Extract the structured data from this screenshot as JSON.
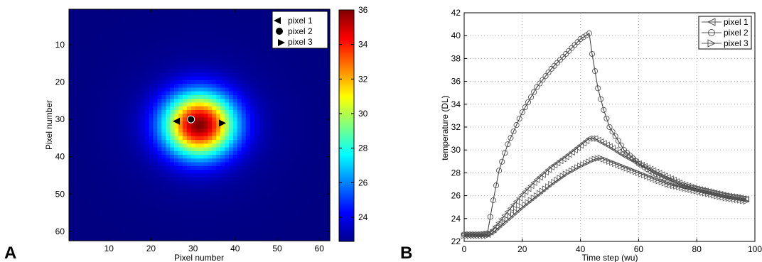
{
  "panels": {
    "A": {
      "letter": "A",
      "xlabel": "Pixel number",
      "ylabel": "Pixel number",
      "xticks": [
        10,
        20,
        30,
        40,
        50,
        60
      ],
      "yticks": [
        10,
        20,
        30,
        40,
        50,
        60
      ],
      "colorbar_ticks": [
        24,
        26,
        28,
        30,
        32,
        34,
        36
      ],
      "legend": [
        {
          "label": "pixel 1",
          "marker": "triangle-left"
        },
        {
          "label": "pixel 2",
          "marker": "circle"
        },
        {
          "label": "pixel 3",
          "marker": "triangle-right"
        }
      ]
    },
    "B": {
      "letter": "B",
      "xlabel": "Time step (wu)",
      "ylabel": "temperature (DL)",
      "xticks": [
        0,
        20,
        40,
        60,
        80,
        100
      ],
      "yticks": [
        22,
        24,
        26,
        28,
        30,
        32,
        34,
        36,
        38,
        40,
        42
      ],
      "legend": [
        {
          "label": "pixel 1",
          "marker": "triangle-left"
        },
        {
          "label": "pixel 2",
          "marker": "circle"
        },
        {
          "label": "pixel 3",
          "marker": "triangle-right"
        }
      ]
    }
  },
  "chart_data": [
    {
      "type": "heatmap",
      "xlabel": "Pixel number",
      "ylabel": "Pixel number",
      "xlim": [
        0.5,
        62.5
      ],
      "ylim": [
        62.5,
        0.5
      ],
      "grid": false,
      "colormap": "jet",
      "colorbar": {
        "min": 22.6,
        "max": 36.0,
        "ticks": [
          24,
          26,
          28,
          30,
          32,
          34,
          36
        ]
      },
      "field": {
        "center": [
          31.5,
          31.5
        ],
        "background": 22.6,
        "peak": 36.0,
        "sigma": 5.8,
        "floor_level": 23.1,
        "floor_sigma": 14
      },
      "markers": [
        {
          "name": "pixel 1",
          "marker": "triangle-left",
          "x": 26,
          "y": 30.5
        },
        {
          "name": "pixel 2",
          "marker": "circle",
          "x": 29.5,
          "y": 30
        },
        {
          "name": "pixel 3",
          "marker": "triangle-right",
          "x": 37,
          "y": 31
        }
      ],
      "legend": "top-right"
    },
    {
      "type": "line",
      "xlabel": "Time step (wu)",
      "ylabel": "temperature (DL)",
      "xlim": [
        0,
        100
      ],
      "ylim": [
        22,
        42
      ],
      "grid": true,
      "legend": "top-right",
      "series": [
        {
          "name": "pixel 1",
          "marker": "triangle-left",
          "x": [
            0,
            5,
            8,
            10,
            15,
            20,
            25,
            30,
            35,
            40,
            43,
            45,
            50,
            55,
            60,
            65,
            70,
            75,
            80,
            85,
            90,
            95,
            97
          ],
          "y": [
            22.6,
            22.6,
            22.6,
            23.0,
            24.6,
            26.1,
            27.4,
            28.5,
            29.4,
            30.4,
            31.0,
            31.0,
            30.3,
            29.5,
            28.8,
            28.2,
            27.6,
            27.0,
            26.6,
            26.3,
            26.0,
            25.8,
            25.7
          ]
        },
        {
          "name": "pixel 2",
          "marker": "circle",
          "x": [
            0,
            5,
            8,
            10,
            12,
            15,
            20,
            25,
            30,
            35,
            40,
            43,
            44,
            46,
            48,
            50,
            55,
            60,
            65,
            70,
            75,
            80,
            85,
            90,
            95,
            97
          ],
          "y": [
            22.6,
            22.6,
            22.7,
            25.6,
            28.2,
            30.5,
            33.3,
            35.5,
            37.1,
            38.4,
            39.7,
            40.2,
            38.4,
            35.4,
            33.5,
            32.0,
            30.0,
            28.8,
            28.0,
            27.4,
            26.9,
            26.6,
            26.3,
            26.0,
            25.8,
            25.7
          ]
        },
        {
          "name": "pixel 3",
          "marker": "triangle-right",
          "x": [
            0,
            5,
            8,
            10,
            15,
            20,
            25,
            30,
            35,
            40,
            45,
            47,
            50,
            55,
            60,
            65,
            70,
            75,
            80,
            85,
            90,
            95,
            97
          ],
          "y": [
            22.5,
            22.5,
            22.5,
            22.8,
            23.9,
            25.0,
            26.0,
            27.0,
            27.9,
            28.6,
            29.2,
            29.3,
            29.0,
            28.5,
            28.0,
            27.5,
            27.0,
            26.7,
            26.4,
            26.1,
            25.8,
            25.6,
            25.5
          ]
        }
      ]
    }
  ]
}
